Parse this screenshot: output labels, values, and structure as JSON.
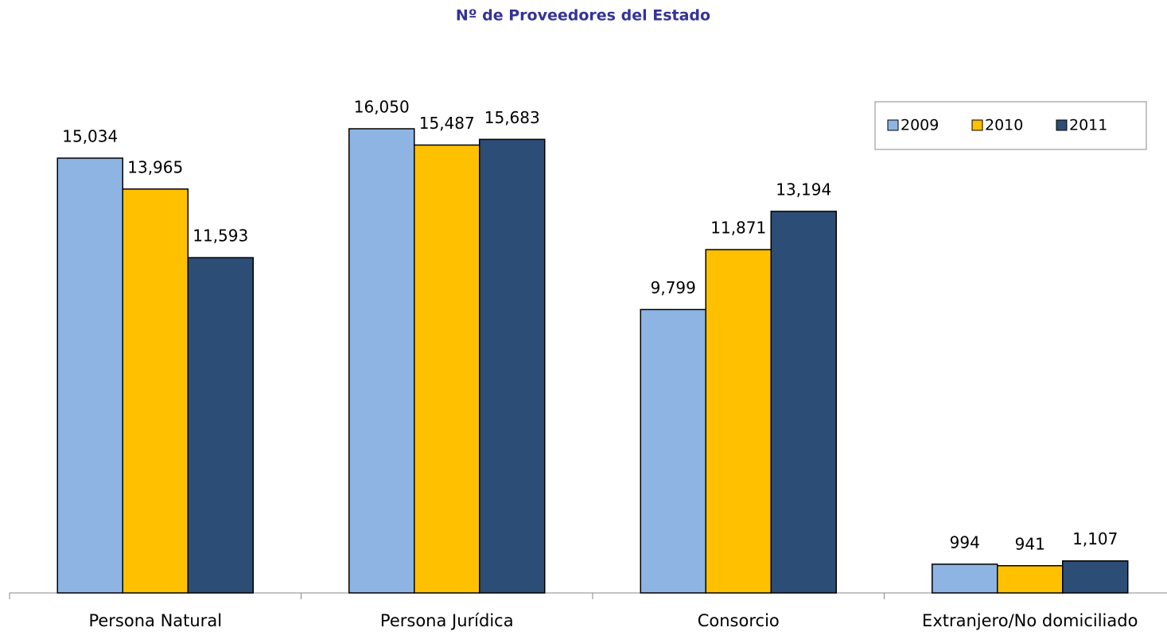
{
  "chart_data": {
    "type": "bar",
    "title": "Nº de Proveedores del Estado",
    "categories": [
      "Persona Natural",
      "Persona Jurídica",
      "Consorcio",
      "Extranjero/No domiciliado"
    ],
    "series": [
      {
        "name": "2009",
        "color": "#8eb4e3",
        "values": [
          15034,
          16050,
          9799,
          994
        ],
        "value_labels": [
          "15,034",
          "16,050",
          "9,799",
          "994"
        ]
      },
      {
        "name": "2010",
        "color": "#ffc000",
        "values": [
          13965,
          15487,
          11871,
          941
        ],
        "value_labels": [
          "13,965",
          "15,487",
          "11,871",
          "941"
        ]
      },
      {
        "name": "2011",
        "color": "#2c4d75",
        "values": [
          11593,
          15683,
          13194,
          1107
        ],
        "value_labels": [
          "11,593",
          "15,683",
          "13,194",
          "1,107"
        ]
      }
    ],
    "legend": "top-right"
  }
}
